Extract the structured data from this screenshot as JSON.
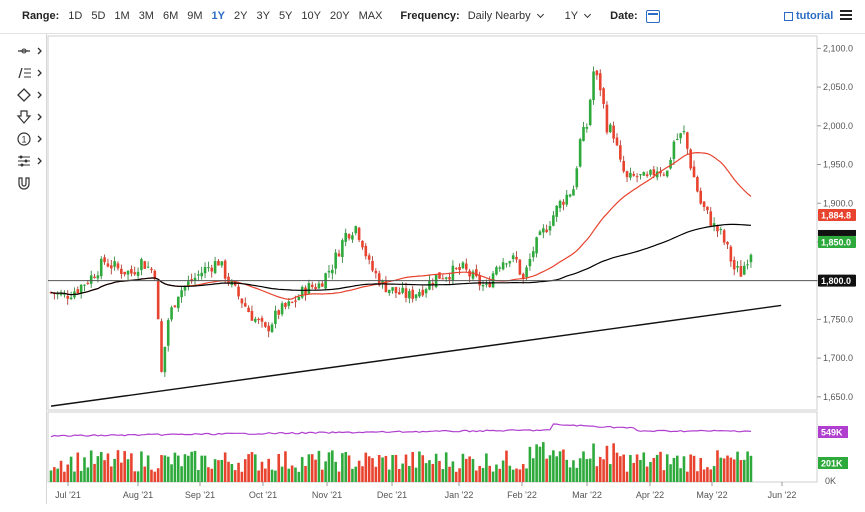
{
  "toolbar": {
    "range_label": "Range:",
    "ranges": [
      "1D",
      "5D",
      "1M",
      "3M",
      "6M",
      "9M",
      "1Y",
      "2Y",
      "3Y",
      "5Y",
      "10Y",
      "20Y",
      "MAX"
    ],
    "active_range": "1Y",
    "frequency_label": "Frequency:",
    "frequency_value": "Daily Nearby",
    "period_value": "1Y",
    "date_label": "Date:",
    "tutorial_label": "tutorial"
  },
  "sidebar_icons": [
    "crosshair-icon",
    "line-draw-icon",
    "shapes-icon",
    "arrow-down-icon",
    "annotation-number-icon",
    "indicators-icon",
    "magnet-icon"
  ],
  "chart_data": {
    "type": "candlestick",
    "instrument_note": "",
    "x_tick_labels": [
      "Jul '21",
      "Aug '21",
      "Sep '21",
      "Oct '21",
      "Nov '21",
      "Dec '21",
      "Jan '22",
      "Feb '22",
      "Mar '22",
      "Apr '22",
      "May '22",
      "Jun '22"
    ],
    "price_axis": {
      "ticks": [
        "2,100.0",
        "2,050.0",
        "2,000.0",
        "1,950.0",
        "1,900.0",
        "1,850.0",
        "1,800.0",
        "1,750.0",
        "1,700.0",
        "1,650.0"
      ],
      "range": [
        1633,
        2116
      ]
    },
    "price_path": [
      [
        0,
        1785
      ],
      [
        4,
        1780
      ],
      [
        8,
        1790
      ],
      [
        12,
        1805
      ],
      [
        16,
        1825
      ],
      [
        20,
        1815
      ],
      [
        24,
        1810
      ],
      [
        27,
        1825
      ],
      [
        31,
        1810
      ],
      [
        33,
        1680
      ],
      [
        35,
        1750
      ],
      [
        38,
        1785
      ],
      [
        42,
        1800
      ],
      [
        46,
        1815
      ],
      [
        50,
        1825
      ],
      [
        53,
        1800
      ],
      [
        56,
        1780
      ],
      [
        60,
        1755
      ],
      [
        64,
        1735
      ],
      [
        68,
        1760
      ],
      [
        72,
        1770
      ],
      [
        76,
        1790
      ],
      [
        80,
        1795
      ],
      [
        84,
        1820
      ],
      [
        88,
        1860
      ],
      [
        91,
        1870
      ],
      [
        93,
        1850
      ],
      [
        95,
        1820
      ],
      [
        99,
        1795
      ],
      [
        103,
        1785
      ],
      [
        107,
        1780
      ],
      [
        111,
        1790
      ],
      [
        115,
        1805
      ],
      [
        119,
        1810
      ],
      [
        123,
        1815
      ],
      [
        127,
        1800
      ],
      [
        130,
        1790
      ],
      [
        133,
        1820
      ],
      [
        136,
        1830
      ],
      [
        139,
        1825
      ],
      [
        141,
        1800
      ],
      [
        144,
        1840
      ],
      [
        148,
        1870
      ],
      [
        152,
        1900
      ],
      [
        156,
        1920
      ],
      [
        158,
        1980
      ],
      [
        160,
        2000
      ],
      [
        162,
        2070
      ],
      [
        164,
        2050
      ],
      [
        166,
        2000
      ],
      [
        168,
        1990
      ],
      [
        170,
        1950
      ],
      [
        172,
        1930
      ],
      [
        175,
        1935
      ],
      [
        178,
        1930
      ],
      [
        181,
        1945
      ],
      [
        184,
        1940
      ],
      [
        186,
        1980
      ],
      [
        189,
        1990
      ],
      [
        191,
        1950
      ],
      [
        194,
        1900
      ],
      [
        196,
        1885
      ],
      [
        198,
        1870
      ],
      [
        200,
        1860
      ],
      [
        202,
        1840
      ],
      [
        204,
        1815
      ],
      [
        206,
        1810
      ],
      [
        208,
        1830
      ],
      [
        210,
        1848
      ]
    ],
    "total_bars": 212,
    "series": [
      {
        "name": "",
        "kind": "moving-average",
        "color": "#e8432e",
        "last": 1884.8
      },
      {
        "name": "",
        "kind": "moving-average",
        "color": "#000000",
        "last": 1850.0
      }
    ],
    "annotations": {
      "horizontal_level": {
        "value": 1800.0,
        "label": "1,800.0"
      },
      "trendline_start": {
        "bar": 0,
        "value": 1638
      },
      "trendline_end": {
        "bar": 218,
        "value": 1768
      },
      "last_price_label": "1,850.0",
      "ma_label": "1,884.8"
    },
    "volume_panel": {
      "labels": [
        "549K",
        "201K",
        "0K"
      ],
      "open_interest_last": "549K",
      "volume_last": "201K"
    },
    "colors": {
      "up": "#2eaa3c",
      "down": "#e8432e",
      "oi_line": "#b03fcf",
      "level": "#555555"
    }
  }
}
